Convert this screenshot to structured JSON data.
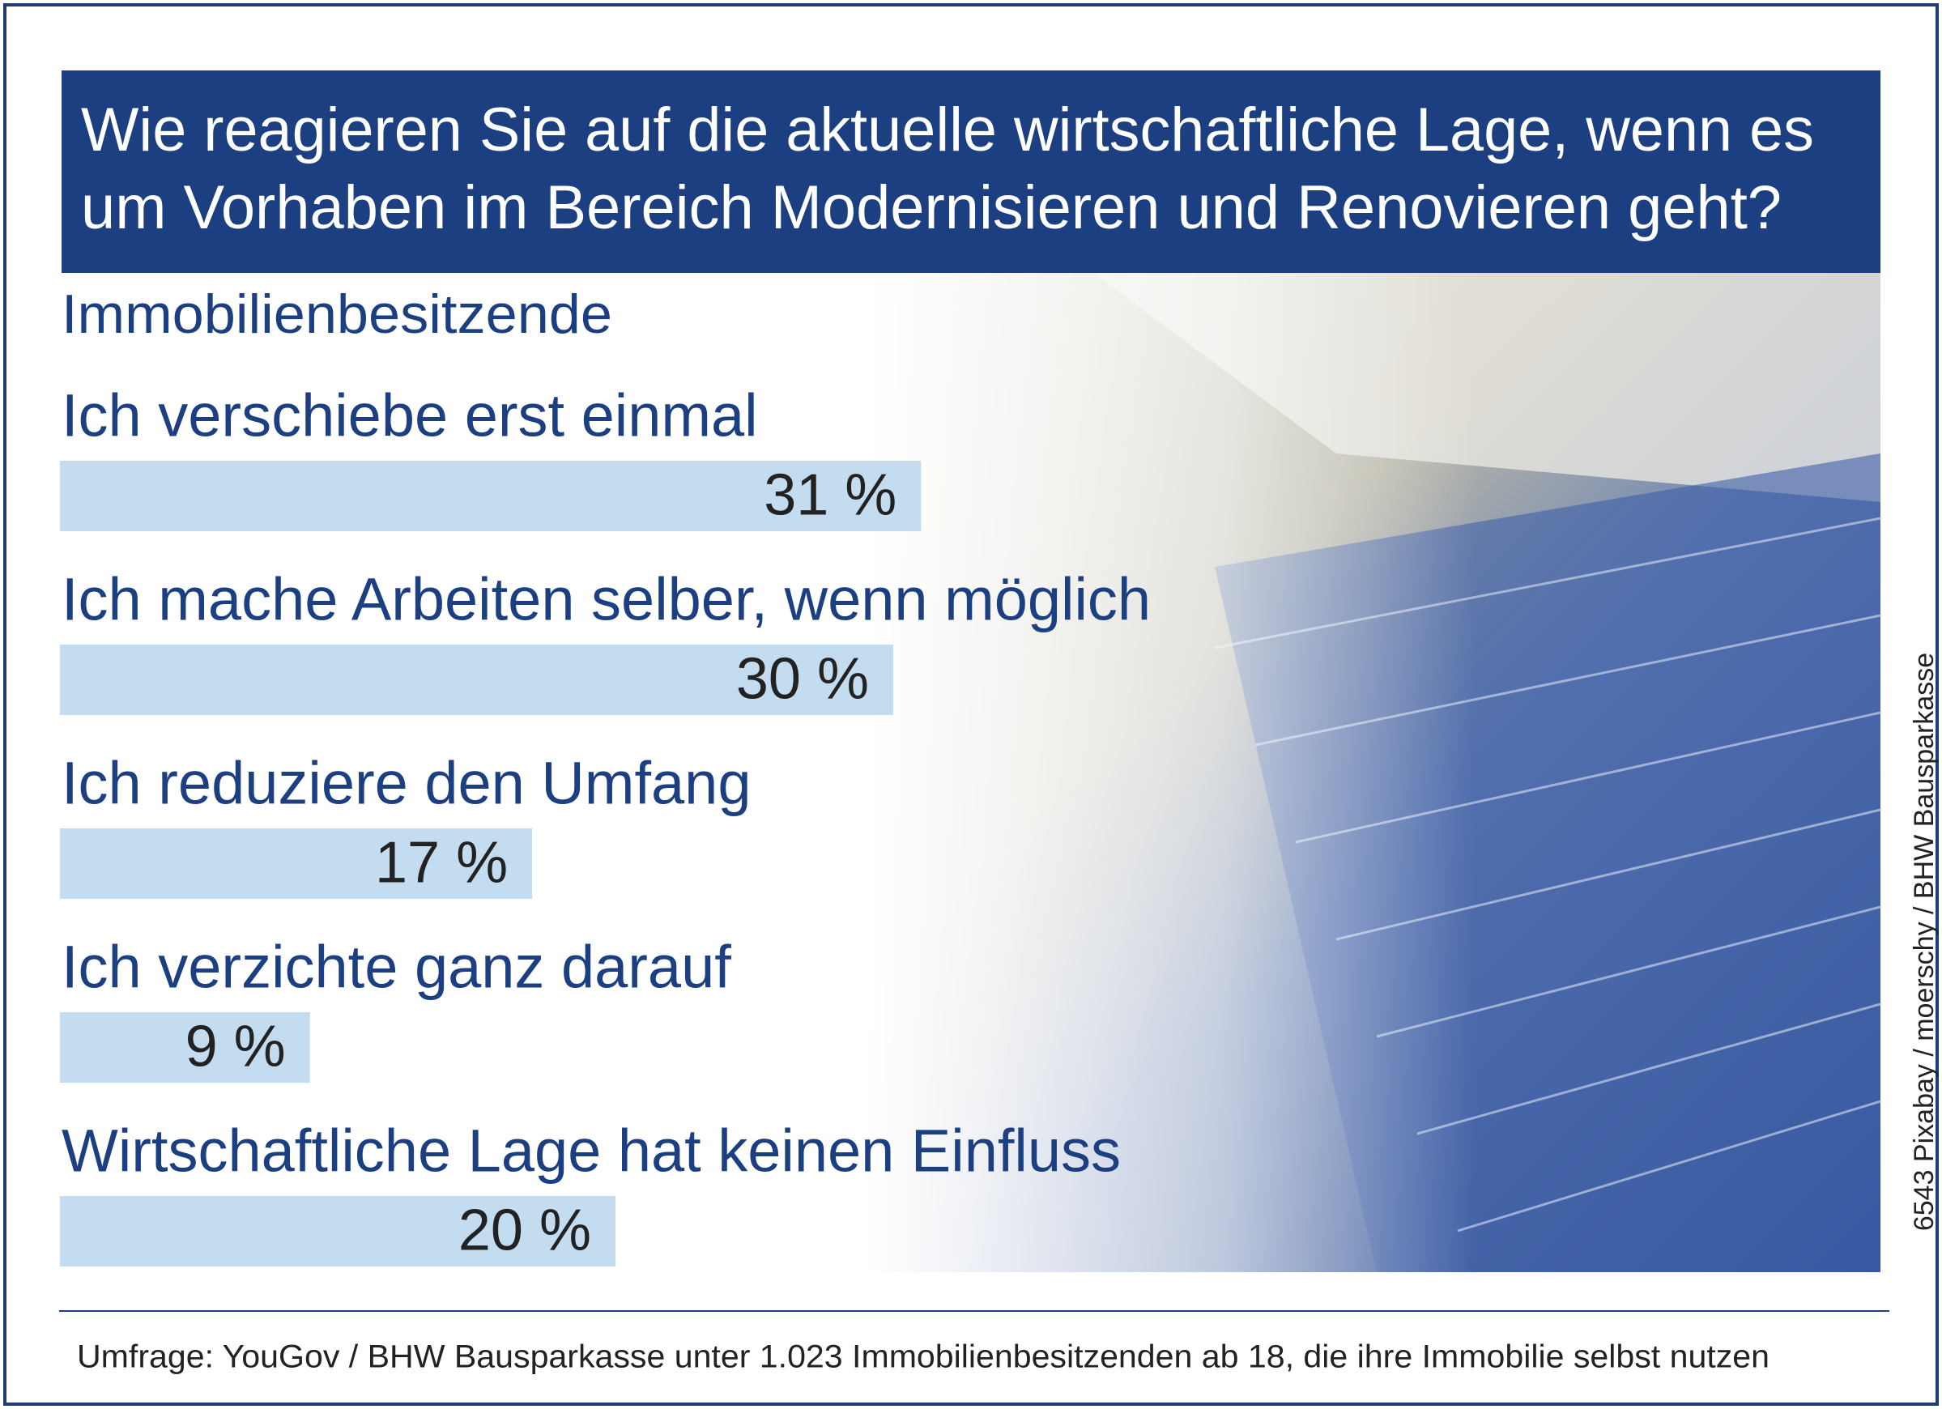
{
  "chart_data": {
    "type": "bar",
    "orientation": "horizontal",
    "title": [
      "Wie reagieren Sie auf die aktuelle wirtschaftliche Lage, wenn es",
      "um Vorhaben im Bereich Modernisieren und Renovieren geht?"
    ],
    "subtitle": "Immobilienbesitzende",
    "categories": [
      "Ich verschiebe erst einmal",
      "Ich mache Arbeiten selber, wenn möglich",
      "Ich reduziere den Umfang",
      "Ich verzichte ganz darauf",
      "Wirtschaftliche Lage hat keinen Einfluss"
    ],
    "values": [
      31,
      30,
      17,
      9,
      20
    ],
    "value_labels": [
      "31 %",
      "30 %",
      "17 %",
      "9 %",
      "20 %"
    ],
    "color": "#c4dcf0",
    "credit": "6543 Pixabay / moerschy / BHW Bausparkasse",
    "source": "Umfrage: YouGov / BHW Bausparkasse unter 1.023 Immobilienbesitzenden ab 18, die ihre Immobilie selbst nutzen"
  }
}
